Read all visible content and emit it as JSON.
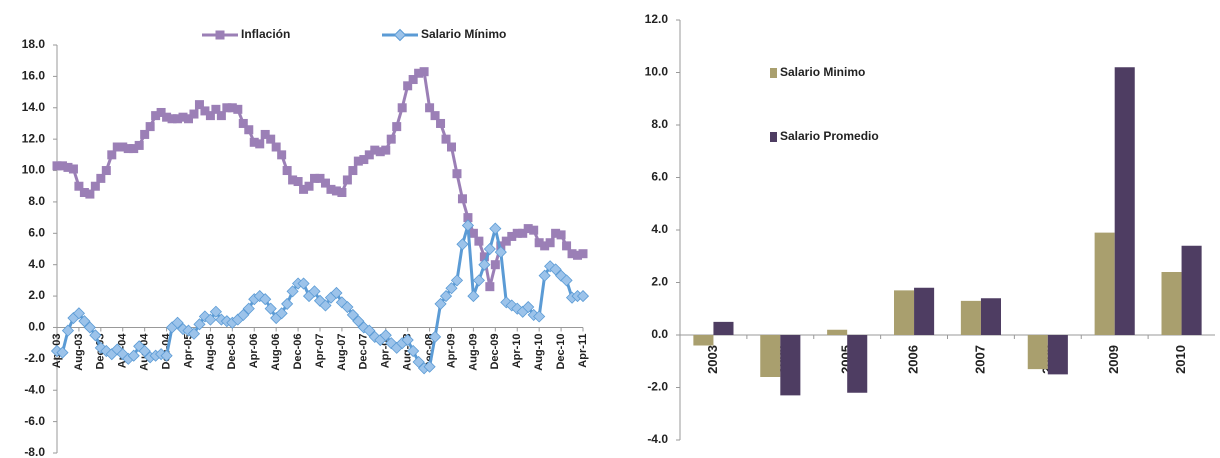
{
  "chart_data": [
    {
      "type": "line",
      "categories": [
        "Apr-03",
        null,
        null,
        null,
        "Aug-03",
        null,
        null,
        null,
        "Dec-03",
        null,
        null,
        null,
        "Apr-04",
        null,
        null,
        null,
        "Aug-04",
        null,
        null,
        null,
        "Dec-04",
        null,
        null,
        null,
        "Apr-05",
        null,
        null,
        null,
        "Aug-05",
        null,
        null,
        null,
        "Dec-05",
        null,
        null,
        null,
        "Apr-06",
        null,
        null,
        null,
        "Aug-06",
        null,
        null,
        null,
        "Dec-06",
        null,
        null,
        null,
        "Apr-07",
        null,
        null,
        null,
        "Aug-07",
        null,
        null,
        null,
        "Dec-07",
        null,
        null,
        null,
        "Apr-08",
        null,
        null,
        null,
        "Aug-08",
        null,
        null,
        null,
        "Dec-08",
        null,
        null,
        null,
        "Apr-09",
        null,
        null,
        null,
        "Aug-09",
        null,
        null,
        null,
        "Dec-09",
        null,
        null,
        null,
        "Apr-10",
        null,
        null,
        null,
        "Aug-10",
        null,
        null,
        null,
        "Dec-10",
        null,
        null,
        null,
        "Apr-11"
      ],
      "series": [
        {
          "name": "Inflación",
          "color": "#9b7fb6",
          "marker": "square",
          "values": [
            10.3,
            10.3,
            10.2,
            10.1,
            9.0,
            8.6,
            8.5,
            9.0,
            9.5,
            10.0,
            11.0,
            11.5,
            11.5,
            11.4,
            11.4,
            11.6,
            12.3,
            12.8,
            13.5,
            13.7,
            13.4,
            13.3,
            13.3,
            13.4,
            13.3,
            13.6,
            14.2,
            13.8,
            13.5,
            13.9,
            13.5,
            14.0,
            14.0,
            13.9,
            13.0,
            12.6,
            11.8,
            11.7,
            12.3,
            12.0,
            11.5,
            11.0,
            10.0,
            9.4,
            9.3,
            8.8,
            9.0,
            9.5,
            9.5,
            9.2,
            8.8,
            8.7,
            8.6,
            9.4,
            10.0,
            10.6,
            10.7,
            11.0,
            11.3,
            11.2,
            11.3,
            12.0,
            12.8,
            14.0,
            15.4,
            15.8,
            16.2,
            16.3,
            14.0,
            13.5,
            13.0,
            12.0,
            11.5,
            9.8,
            8.2,
            7.0,
            6.0,
            5.5,
            4.5,
            2.6,
            4.0,
            5.2,
            5.5,
            5.8,
            6.0,
            6.0,
            6.3,
            6.2,
            5.4,
            5.2,
            5.4,
            6.0,
            5.9,
            5.2,
            4.7,
            4.6,
            4.7
          ]
        },
        {
          "name": "Salario Mínimo",
          "color": "#5b9bd5",
          "marker": "diamond",
          "values": [
            -1.5,
            -1.6,
            -0.2,
            0.6,
            0.9,
            0.4,
            0.0,
            -0.5,
            -1.3,
            -1.5,
            -1.7,
            -1.4,
            -1.7,
            -2.0,
            -1.8,
            -1.2,
            -1.5,
            -1.9,
            -1.8,
            -1.7,
            -1.8,
            0.0,
            0.3,
            -0.1,
            -0.2,
            -0.4,
            0.2,
            0.7,
            0.5,
            1.0,
            0.5,
            0.4,
            0.3,
            0.5,
            0.8,
            1.2,
            1.8,
            2.0,
            1.8,
            1.2,
            0.6,
            0.9,
            1.5,
            2.3,
            2.8,
            2.8,
            2.0,
            2.3,
            1.7,
            1.4,
            1.9,
            2.2,
            1.6,
            1.3,
            0.8,
            0.4,
            0.0,
            -0.2,
            -0.6,
            -0.8,
            -0.5,
            -1.0,
            -1.3,
            -1.0,
            -0.8,
            -1.5,
            -2.2,
            -2.6,
            -2.5,
            -0.6,
            1.5,
            2.0,
            2.5,
            3.0,
            5.3,
            6.5,
            2.0,
            3.0,
            4.0,
            5.0,
            6.3,
            4.8,
            1.6,
            1.4,
            1.2,
            1.0,
            1.3,
            0.8,
            0.7,
            3.3,
            3.9,
            3.7,
            3.3,
            3.0,
            1.9,
            2.0,
            2.0
          ]
        }
      ],
      "ylim": [
        -8,
        18
      ],
      "yticks": [
        {
          "value": -8,
          "label": "-8.0"
        },
        {
          "value": -6,
          "label": "-6.0"
        },
        {
          "value": -4,
          "label": "-4.0"
        },
        {
          "value": -2,
          "label": "-2.0"
        },
        {
          "value": 0,
          "label": "0.0"
        },
        {
          "value": 2,
          "label": "2.0"
        },
        {
          "value": 4,
          "label": "4.0"
        },
        {
          "value": 6,
          "label": "6.0"
        },
        {
          "value": 8,
          "label": "8.0"
        },
        {
          "value": 10,
          "label": "10.0"
        },
        {
          "value": 12,
          "label": "12.0"
        },
        {
          "value": 14,
          "label": "14.0"
        },
        {
          "value": 16,
          "label": "16.0"
        },
        {
          "value": 18,
          "label": "18.0"
        }
      ],
      "legend": "top"
    },
    {
      "type": "bar",
      "categories": [
        "2003",
        "2004",
        "2005",
        "2006",
        "2007",
        "2008",
        "2009",
        "2010"
      ],
      "series": [
        {
          "name": "Salario Minimo",
          "color": "#a99f6e",
          "values": [
            -0.4,
            -1.6,
            0.2,
            1.7,
            1.3,
            -1.3,
            3.9,
            2.4
          ]
        },
        {
          "name": "Salario Promedio",
          "color": "#4e3d62",
          "values": [
            0.5,
            -2.3,
            -2.2,
            1.8,
            1.4,
            -1.5,
            10.2,
            3.4
          ]
        }
      ],
      "ylim": [
        -4,
        12
      ],
      "yticks": [
        {
          "value": -4,
          "label": "-4.0"
        },
        {
          "value": -2,
          "label": "-2.0"
        },
        {
          "value": 0,
          "label": "0.0"
        },
        {
          "value": 2,
          "label": "2.0"
        },
        {
          "value": 4,
          "label": "4.0"
        },
        {
          "value": 6,
          "label": "6.0"
        },
        {
          "value": 8,
          "label": "8.0"
        },
        {
          "value": 10,
          "label": "10.0"
        },
        {
          "value": 12,
          "label": "12.0"
        }
      ],
      "legend": "upper left"
    }
  ]
}
